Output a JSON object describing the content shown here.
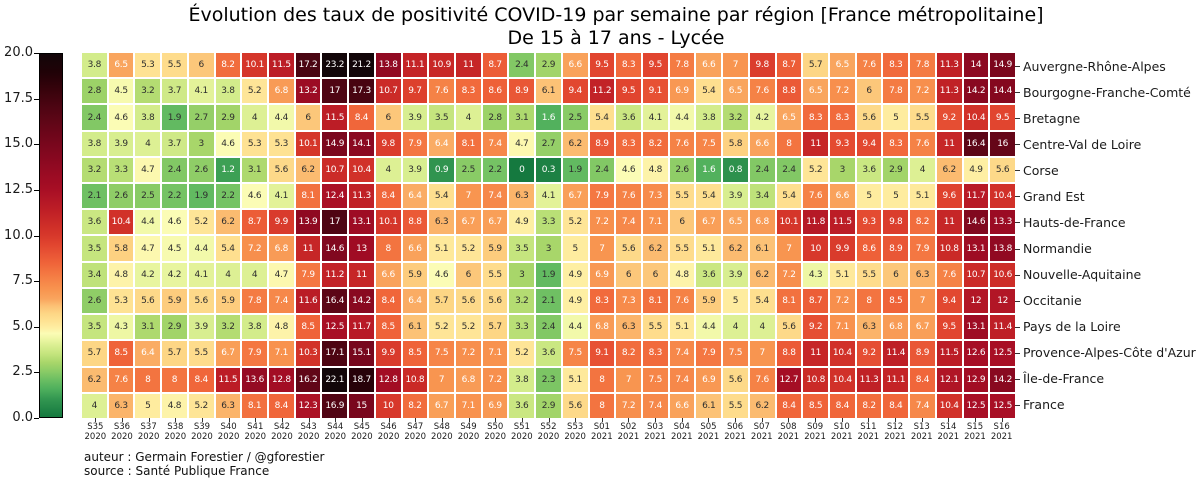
{
  "footer": {
    "author": "auteur : Germain Forestier / @gforestier",
    "source": "source : Santé Publique France"
  },
  "chart_data": {
    "type": "heatmap",
    "title": "Évolution des taux de positivité COVID-19 par semaine par région [France métropolitaine]",
    "subtitle": "De 15 à 17 ans - Lycée",
    "x_tick_weeks": [
      "S35",
      "S36",
      "S37",
      "S38",
      "S39",
      "S40",
      "S41",
      "S42",
      "S43",
      "S44",
      "S45",
      "S46",
      "S47",
      "S48",
      "S49",
      "S50",
      "S51",
      "S52",
      "S53",
      "S01",
      "S02",
      "S03",
      "S04",
      "S05",
      "S06",
      "S07",
      "S08",
      "S09",
      "S10",
      "S11",
      "S12",
      "S13",
      "S14",
      "S15",
      "S16"
    ],
    "x_tick_years": [
      "2020",
      "2020",
      "2020",
      "2020",
      "2020",
      "2020",
      "2020",
      "2020",
      "2020",
      "2020",
      "2020",
      "2020",
      "2020",
      "2020",
      "2020",
      "2020",
      "2020",
      "2020",
      "2020",
      "2021",
      "2021",
      "2021",
      "2021",
      "2021",
      "2021",
      "2021",
      "2021",
      "2021",
      "2021",
      "2021",
      "2021",
      "2021",
      "2021",
      "2021",
      "2021"
    ],
    "rows": [
      "Auvergne-Rhône-Alpes",
      "Bourgogne-Franche-Comté",
      "Bretagne",
      "Centre-Val de Loire",
      "Corse",
      "Grand Est",
      "Hauts-de-France",
      "Normandie",
      "Nouvelle-Aquitaine",
      "Occitanie",
      "Pays de la Loire",
      "Provence-Alpes-Côte d'Azur",
      "Île-de-France",
      "France"
    ],
    "values": [
      [
        3.8,
        6.5,
        5.3,
        5.5,
        6,
        8.2,
        10.1,
        11.5,
        17.2,
        23.2,
        21.2,
        13.8,
        11.1,
        10.9,
        11,
        8.7,
        2.4,
        2.9,
        6.6,
        9.5,
        8.3,
        9.5,
        7.8,
        6.6,
        7,
        9.8,
        8.7,
        5.7,
        6.5,
        7.6,
        8.3,
        7.8,
        11.3,
        14,
        14.9
      ],
      [
        2.8,
        4.5,
        3.2,
        3.7,
        4.1,
        3.8,
        5.2,
        6.8,
        13.2,
        17,
        17.3,
        10.7,
        9.7,
        7.6,
        8.3,
        8.6,
        8.9,
        6.1,
        9.4,
        11.2,
        9.5,
        9.1,
        6.9,
        5.4,
        6.5,
        7.6,
        8.8,
        6.5,
        7.2,
        6,
        7.8,
        7.2,
        11.3,
        14.2,
        14.4
      ],
      [
        2.4,
        4.6,
        3.8,
        1.9,
        2.7,
        2.9,
        4,
        4.4,
        6,
        11.5,
        8.4,
        6,
        3.9,
        3.5,
        4,
        2.8,
        3.1,
        1.6,
        2.5,
        5.4,
        3.6,
        4.1,
        4.4,
        3.8,
        3.2,
        4.2,
        6.5,
        8.3,
        8.3,
        5.6,
        5,
        5.5,
        9.2,
        10.4,
        9.5
      ],
      [
        3.8,
        3.9,
        4,
        3.7,
        3,
        4.6,
        5.3,
        5.3,
        10.1,
        14.9,
        14.1,
        9.8,
        7.9,
        6.4,
        8.1,
        7.4,
        4.7,
        2.7,
        6.2,
        8.9,
        8.3,
        8.2,
        7.6,
        7.5,
        5.8,
        6.6,
        8,
        11,
        9.3,
        9.4,
        8.3,
        7.6,
        11,
        16.4,
        16
      ],
      [
        3.2,
        3.3,
        4.7,
        2.4,
        2.6,
        1.2,
        3.1,
        5.6,
        6.2,
        10.7,
        10.4,
        4,
        3.9,
        0.9,
        2.5,
        2.2,
        0,
        0.3,
        1.9,
        2.4,
        4.6,
        4.8,
        2.6,
        1.6,
        0.8,
        2.4,
        2.4,
        5.2,
        3,
        3.6,
        2.9,
        4,
        6.2,
        4.9,
        5.6
      ],
      [
        2.1,
        2.6,
        2.5,
        2.2,
        1.9,
        2.2,
        4.6,
        4.1,
        8.1,
        12.4,
        11.3,
        8.4,
        6.4,
        5.4,
        7,
        7.4,
        6.3,
        4.1,
        6.7,
        7.9,
        7.6,
        7.3,
        5.5,
        5.4,
        3.9,
        3.4,
        5.4,
        7.6,
        6.6,
        5,
        5,
        5.1,
        9.6,
        11.7,
        10.4
      ],
      [
        3.6,
        10.4,
        4.4,
        4.6,
        5.2,
        6.2,
        8.7,
        9.9,
        13.9,
        17,
        13.1,
        10.1,
        8.8,
        6.3,
        6.7,
        6.7,
        4.9,
        3.3,
        5.2,
        7.2,
        7.4,
        7.1,
        6,
        6.7,
        6.5,
        6.8,
        10.1,
        11.8,
        11.5,
        9.3,
        9.8,
        8.2,
        11,
        14.6,
        13.3
      ],
      [
        3.5,
        5.8,
        4.7,
        4.5,
        4.4,
        5.4,
        7.2,
        6.8,
        11,
        14.6,
        13,
        8,
        6.6,
        5.1,
        5.2,
        5.9,
        3.5,
        3,
        5,
        7,
        5.6,
        6.2,
        5.5,
        5.1,
        6.2,
        6.1,
        7,
        10,
        9.9,
        8.6,
        8.9,
        7.9,
        10.8,
        13.1,
        13.8
      ],
      [
        3.4,
        4.8,
        4.2,
        4.2,
        4.1,
        4,
        4,
        4.7,
        7.9,
        11.2,
        11,
        6.6,
        5.9,
        4.6,
        6,
        5.5,
        3,
        1.9,
        4.9,
        6.9,
        6,
        6,
        4.8,
        3.6,
        3.9,
        6.2,
        7.2,
        4.3,
        5.1,
        5.5,
        6,
        6.3,
        7.6,
        10.7,
        10.6
      ],
      [
        2.6,
        5.3,
        5.6,
        5.9,
        5.6,
        5.9,
        7.8,
        7.4,
        11.6,
        16.4,
        14.2,
        8.4,
        6.4,
        5.7,
        5.6,
        5.6,
        3.2,
        2.1,
        4.9,
        8.3,
        7.3,
        8.1,
        7.6,
        5.9,
        5,
        5.4,
        8.1,
        8.7,
        7.2,
        8,
        8.5,
        7,
        9.4,
        12,
        12
      ],
      [
        3.5,
        4.3,
        3.1,
        2.9,
        3.9,
        3.2,
        3.8,
        4.8,
        8.5,
        12.5,
        11.7,
        8.5,
        6.1,
        5.2,
        5.2,
        5.7,
        3.3,
        2.4,
        4.4,
        6.8,
        6.3,
        5.5,
        5.1,
        4.4,
        4,
        4,
        5.6,
        9.2,
        7.1,
        6.3,
        6.8,
        6.7,
        9.5,
        13.1,
        11.4
      ],
      [
        5.7,
        8.5,
        6.4,
        5.7,
        5.5,
        6.7,
        7.9,
        7.1,
        10.3,
        17.1,
        15.1,
        9.9,
        8.5,
        7.5,
        7.2,
        7.1,
        5.2,
        3.6,
        7.5,
        9.1,
        8.2,
        8.3,
        7.4,
        7.9,
        7.5,
        7,
        8.8,
        11,
        10.4,
        9.2,
        11.4,
        8.9,
        11.5,
        12.6,
        12.5
      ],
      [
        6.2,
        7.6,
        8,
        8,
        8.4,
        11.5,
        13.6,
        12.8,
        16.2,
        22.1,
        18.7,
        12.8,
        10.8,
        7,
        6.8,
        7.2,
        3.8,
        2.3,
        5.1,
        8,
        7,
        7.5,
        7.4,
        6.9,
        5.6,
        7.6,
        12.7,
        10.8,
        10.4,
        11.3,
        11.1,
        8.4,
        12.1,
        12.9,
        14.2
      ],
      [
        4,
        6.3,
        5,
        4.8,
        5.2,
        6.3,
        8.1,
        8.4,
        12.3,
        16.9,
        15,
        10,
        8.2,
        6.7,
        7.1,
        6.9,
        3.6,
        2.9,
        5.6,
        8,
        7.2,
        7.4,
        6.6,
        6.1,
        5.5,
        6.2,
        8.4,
        8.5,
        8.4,
        8.2,
        8.4,
        7.4,
        10.4,
        12.5,
        12.5
      ]
    ],
    "colorbar": {
      "min": 0,
      "max": 20,
      "tick_labels": [
        "20.0",
        "17.5",
        "15.0",
        "12.5",
        "10.0",
        "7.5",
        "5.0",
        "2.5",
        "0.0"
      ]
    },
    "colormap_stops": [
      [
        0,
        "#15793f"
      ],
      [
        0.5,
        "#238748"
      ],
      [
        1,
        "#339751"
      ],
      [
        1.5,
        "#4cae5c"
      ],
      [
        2,
        "#68bd62"
      ],
      [
        2.5,
        "#89cb66"
      ],
      [
        3,
        "#a8d66a"
      ],
      [
        3.5,
        "#c5e57e"
      ],
      [
        4,
        "#ddf094"
      ],
      [
        4.3,
        "#eef7a4"
      ],
      [
        4.6,
        "#fbfcb5"
      ],
      [
        4.9,
        "#feefa3"
      ],
      [
        5.3,
        "#fee293"
      ],
      [
        5.7,
        "#fdd685"
      ],
      [
        6.1,
        "#fcc276"
      ],
      [
        6.5,
        "#f9a55e"
      ],
      [
        7,
        "#f89550"
      ],
      [
        7.5,
        "#f68548"
      ],
      [
        8,
        "#f37440"
      ],
      [
        8.5,
        "#ef6339"
      ],
      [
        9,
        "#e85435"
      ],
      [
        9.5,
        "#e1452f"
      ],
      [
        10,
        "#d7382b"
      ],
      [
        10.5,
        "#cf2f28"
      ],
      [
        11,
        "#c62627"
      ],
      [
        11.5,
        "#bc1d26"
      ],
      [
        12,
        "#b21626"
      ],
      [
        12.5,
        "#a80f25"
      ],
      [
        13,
        "#a00c24"
      ],
      [
        13.5,
        "#970b23"
      ],
      [
        14,
        "#8d0921"
      ],
      [
        15,
        "#79071d"
      ],
      [
        16,
        "#650618"
      ],
      [
        17,
        "#4f0513"
      ],
      [
        18,
        "#38030c"
      ],
      [
        19,
        "#200207"
      ],
      [
        20,
        "#120609"
      ]
    ],
    "annotation_text_rules": {
      "white_text_below": 1.7,
      "white_text_above": 6.35,
      "dark_text_color": "#2e2e2e",
      "light_text_color": "#ffffff"
    },
    "grid": true,
    "legend_position": "left-colorbar"
  }
}
